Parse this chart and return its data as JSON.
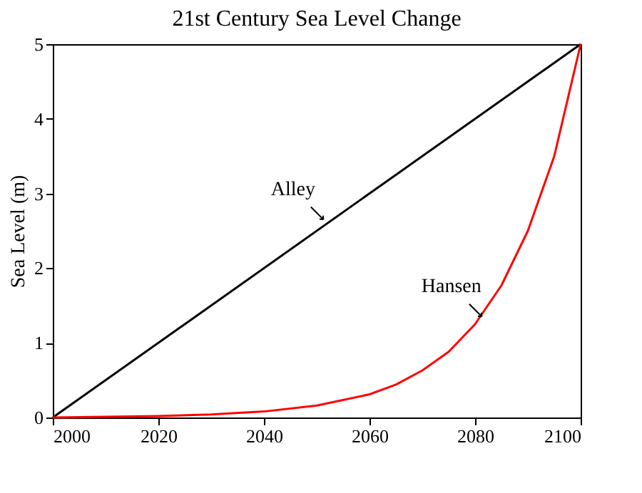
{
  "chart_data": {
    "type": "line",
    "title": "21st Century Sea Level Change",
    "ylabel": "Sea Level (m)",
    "xlim": [
      2000,
      2100
    ],
    "xticks": [
      2000,
      2020,
      2040,
      2060,
      2080,
      2100
    ],
    "ylim": [
      0,
      5
    ],
    "yticks": [
      0,
      1,
      2,
      3,
      4,
      5
    ],
    "grid": false,
    "legend": false,
    "series": [
      {
        "color": "#000000",
        "x": [
          2000,
          2100
        ],
        "values": [
          0,
          5
        ]
      },
      {
        "color": "#ff0000",
        "x": [
          2000,
          2010,
          2020,
          2030,
          2040,
          2050,
          2060,
          2065,
          2070,
          2075,
          2080,
          2085,
          2090,
          2095,
          2100
        ],
        "values": [
          0.0,
          0.01,
          0.02,
          0.04,
          0.08,
          0.16,
          0.31,
          0.44,
          0.63,
          0.88,
          1.25,
          1.77,
          2.5,
          3.5,
          5.0
        ]
      }
    ],
    "annotations": [
      {
        "text": "Alley",
        "x": 2052,
        "y": 2.6
      },
      {
        "text": "Hansen",
        "x": 2082,
        "y": 1.3
      }
    ]
  }
}
